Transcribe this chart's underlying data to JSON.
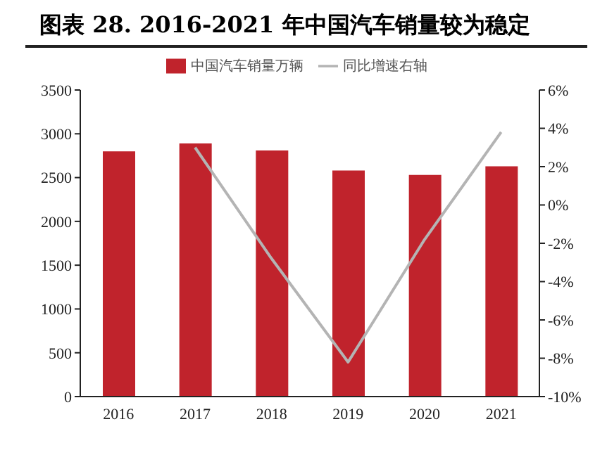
{
  "chart_data": {
    "type": "bar",
    "title": "图表 28. 2016-2021 年中国汽车销量较为稳定",
    "categories": [
      "2016",
      "2017",
      "2018",
      "2019",
      "2020",
      "2021"
    ],
    "series": [
      {
        "name": "中国汽车销量万辆",
        "color": "#c0232c",
        "values": [
          2800,
          2890,
          2810,
          2580,
          2530,
          2630
        ]
      },
      {
        "name": "同比增速右轴",
        "type": "line",
        "axis": "y2",
        "color": "#b4b4b4",
        "marker": "none",
        "values": [
          null,
          3.0,
          -2.8,
          -8.2,
          -1.8,
          3.8
        ]
      }
    ],
    "ylim": [
      0,
      3500
    ],
    "yticks": [
      0,
      500,
      1000,
      1500,
      2000,
      2500,
      3000,
      3500
    ],
    "y2lim": [
      -10,
      6
    ],
    "y2ticks": [
      {
        "value": -10,
        "label": "-10%"
      },
      {
        "value": -8,
        "label": "-8%"
      },
      {
        "value": -6,
        "label": "-6%"
      },
      {
        "value": -4,
        "label": "-4%"
      },
      {
        "value": -2,
        "label": "-2%"
      },
      {
        "value": 0,
        "label": "0%"
      },
      {
        "value": 2,
        "label": "2%"
      },
      {
        "value": 4,
        "label": "4%"
      },
      {
        "value": 6,
        "label": "6%"
      }
    ],
    "grid": false,
    "legend": "top"
  }
}
